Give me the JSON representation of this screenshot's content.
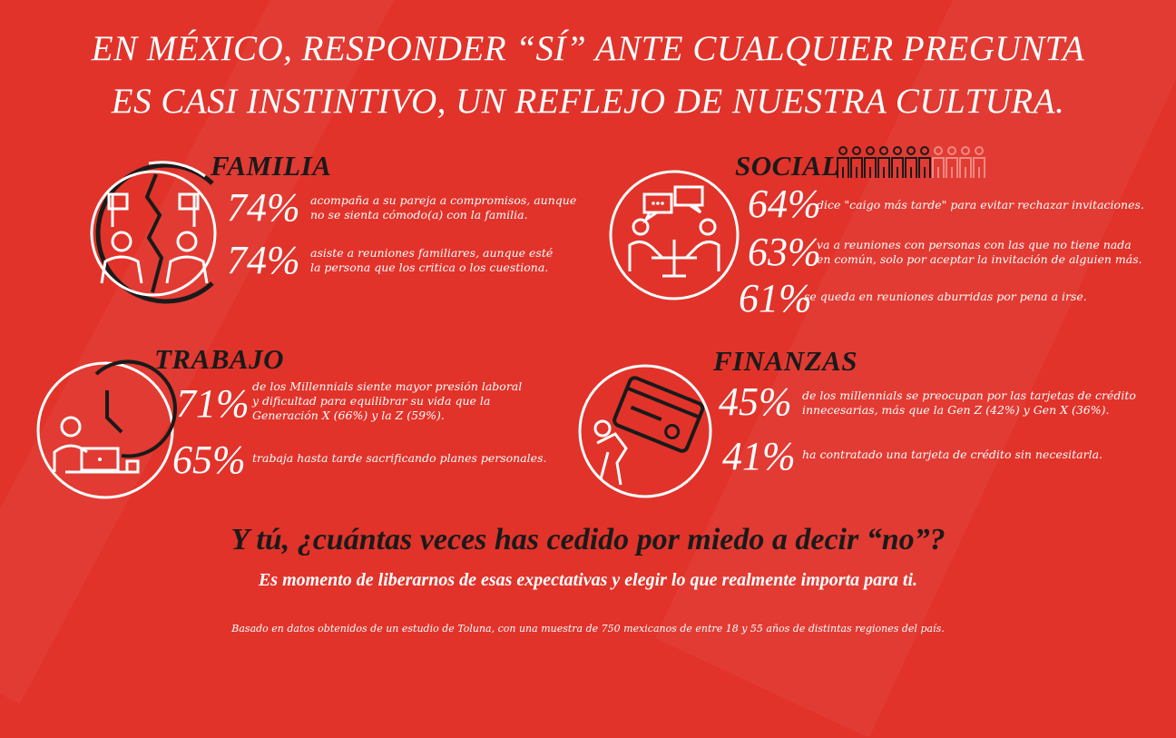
{
  "title": {
    "line1": "EN MÉXICO, RESPONDER “SÍ” ANTE CUALQUIER PREGUNTA",
    "line2": "ES CASI INSTINTIVO, UN REFLEJO DE NUESTRA CULTURA."
  },
  "familia": {
    "heading": "FAMILIA",
    "stats": [
      {
        "pct": "74%",
        "text": "acompaña a su pareja a  compromisos, aunque\nno se sienta cómodo(a) con la familia."
      },
      {
        "pct": "74%",
        "text": "asiste a reuniones familiares, aunque esté\nla persona que los critica o los cuestiona."
      }
    ]
  },
  "social": {
    "heading": "SOCIAL",
    "people_filled": 7,
    "people_total": 11,
    "stats": [
      {
        "pct": "64%",
        "text": "dice \"caigo más tarde\" para evitar rechazar invitaciones."
      },
      {
        "pct": "63%",
        "text": "va a reuniones con personas con las que no tiene nada\nen común, solo por aceptar la invitación de alguien más."
      },
      {
        "pct": "61%",
        "text": "se queda en reuniones aburridas por pena a irse."
      }
    ]
  },
  "trabajo": {
    "heading": "TRABAJO",
    "stats": [
      {
        "pct": "71%",
        "text": "de los Millennials siente mayor presión laboral\ny dificultad para equilibrar su vida que la\nGeneración X (66%) y la Z (59%)."
      },
      {
        "pct": "65%",
        "text": "trabaja hasta tarde sacrificando planes personales."
      }
    ]
  },
  "finanzas": {
    "heading": "FINANZAS",
    "stats": [
      {
        "pct": "45%",
        "text": "de los millennials se preocupan por las tarjetas de crédito\ninnecesarias, más que la Gen Z (42%) y Gen X (36%)."
      },
      {
        "pct": "41%",
        "text": "ha contratado una tarjeta de crédito sin necesitarla."
      }
    ]
  },
  "closing": {
    "question": "Y tú, ¿cuántas veces has cedido por miedo a decir “no”?",
    "subtitle": "Es momento de liberarnos de esas expectativas y elegir lo que realmente importa para ti.",
    "footnote": "Basado en datos obtenidos de un estudio de Toluna, con una muestra de 750 mexicanos de entre 18 y 55 años de distintas regiones del país."
  },
  "colors": {
    "background": "#e1332a",
    "heading_dark": "#1a1a1a",
    "text_light": "#ffffff"
  },
  "icons": [
    "family-conflict-icon",
    "meeting-icon",
    "people-row-icon",
    "clock-laptop-icon",
    "credit-card-burden-icon"
  ]
}
